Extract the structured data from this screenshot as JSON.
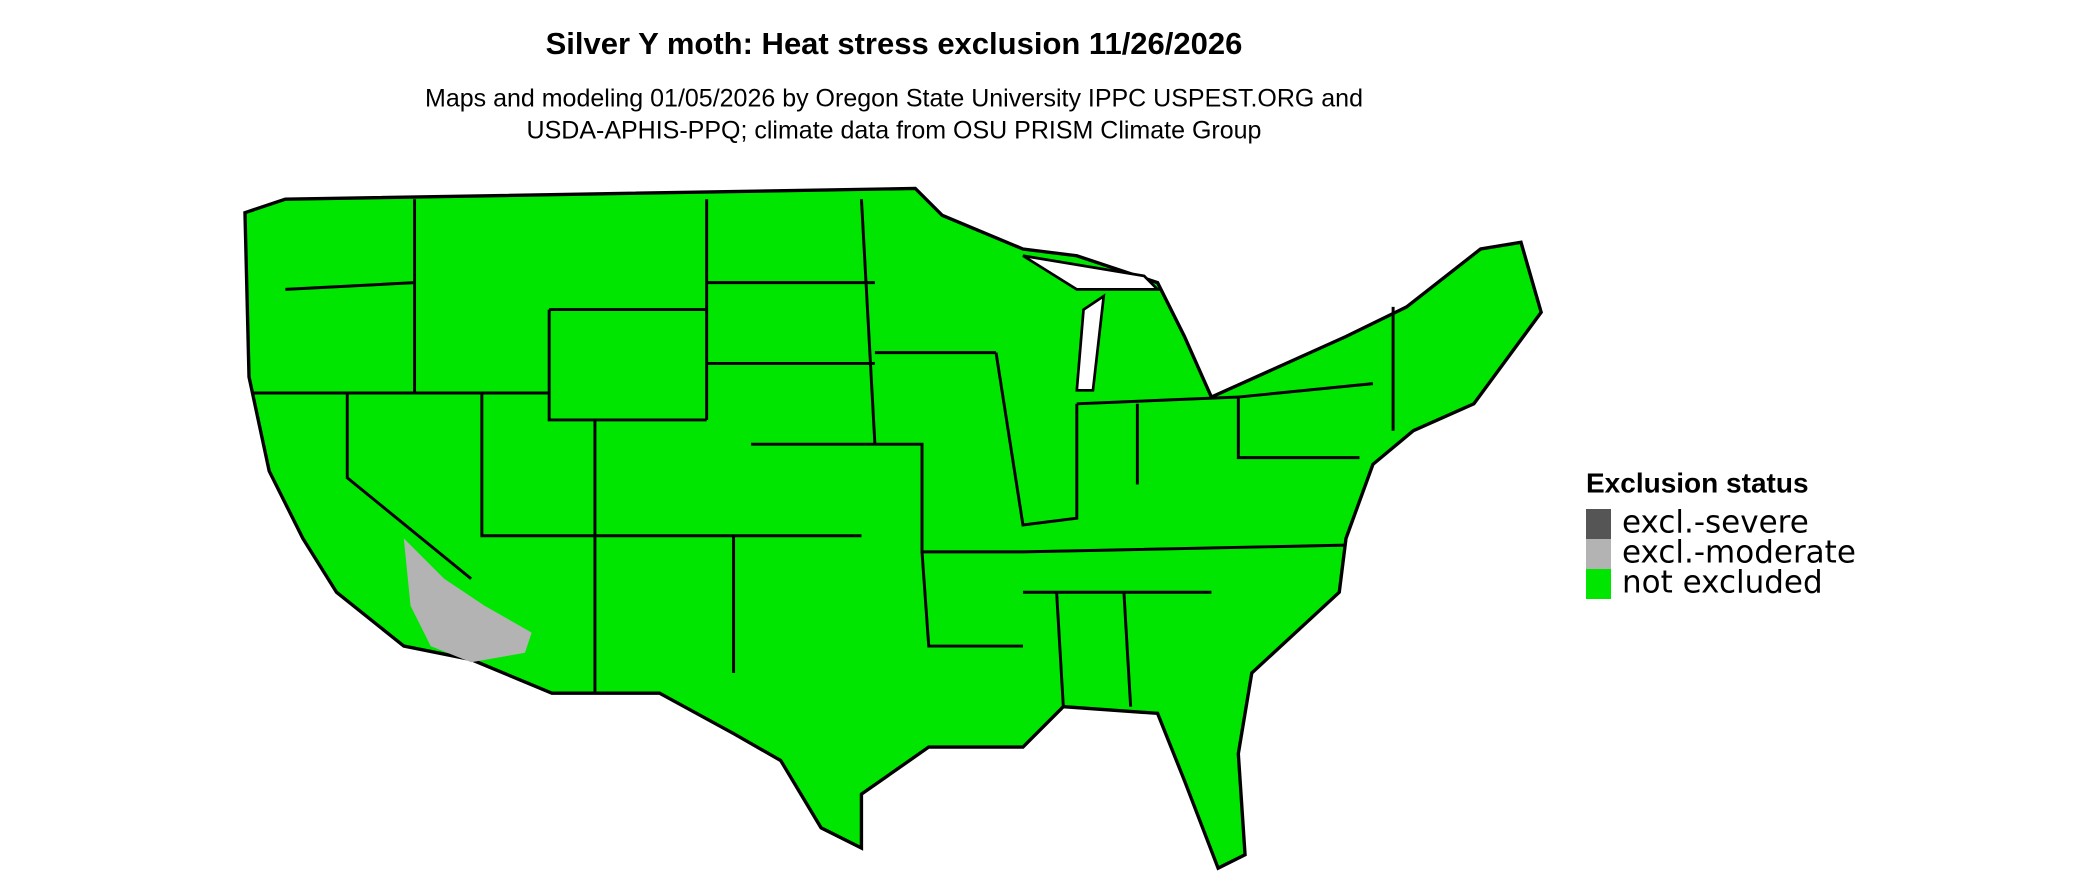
{
  "map": {
    "title": "Silver Y moth: Heat stress exclusion 11/26/2026",
    "subtitle": [
      "Maps and modeling 01/05/2026 by Oregon State University IPPC USPEST.ORG and",
      "USDA-APHIS-PPQ; climate data from OSU PRISM Climate Group"
    ],
    "legend": {
      "title": "Exclusion status",
      "items": [
        {
          "label": "excl.-severe",
          "color": "#555555"
        },
        {
          "label": "excl.-moderate",
          "color": "#b3b3b3"
        },
        {
          "label": "not excluded",
          "color": "#00e600"
        }
      ]
    }
  }
}
